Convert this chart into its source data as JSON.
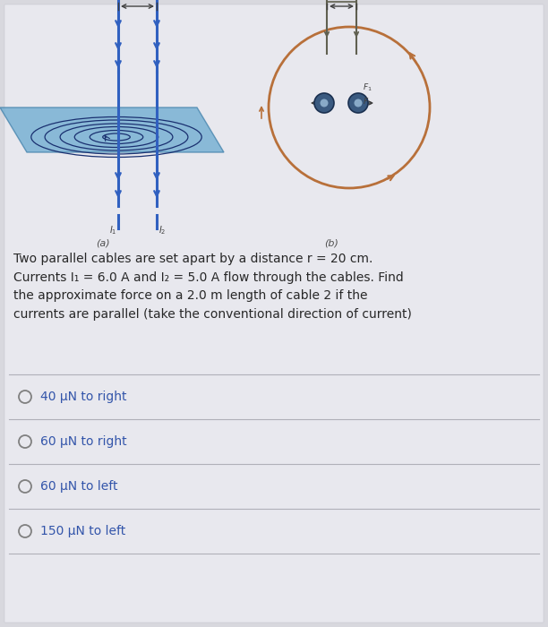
{
  "bg_color": "#d8d8de",
  "panel_bg": "#e8e8ee",
  "question_text": "Two parallel cables are set apart by a distance r = 20 cm.\nCurrents I₁ = 6.0 A and I₂ = 5.0 A flow through the cables. Find\nthe approximate force on a 2.0 m length of cable 2 if the\ncurrents are parallel (take the conventional direction of current)",
  "options": [
    "40 μN to right",
    "60 μN to right",
    "60 μN to left",
    "150 μN to left"
  ],
  "label_a": "(a)",
  "label_b": "(b)",
  "cable_blue": "#3060c0",
  "coil_dark": "#1a3070",
  "plane_blue": "#6aaad0",
  "circle_brown": "#b8703a",
  "dot_blue": "#3a5a80",
  "dot_light": "#88aac8",
  "wire_gray": "#606050",
  "dim_color": "#404040",
  "text_color": "#282828",
  "option_color": "#3355aa",
  "line_color": "#b0b0b8",
  "label_color": "#505050"
}
